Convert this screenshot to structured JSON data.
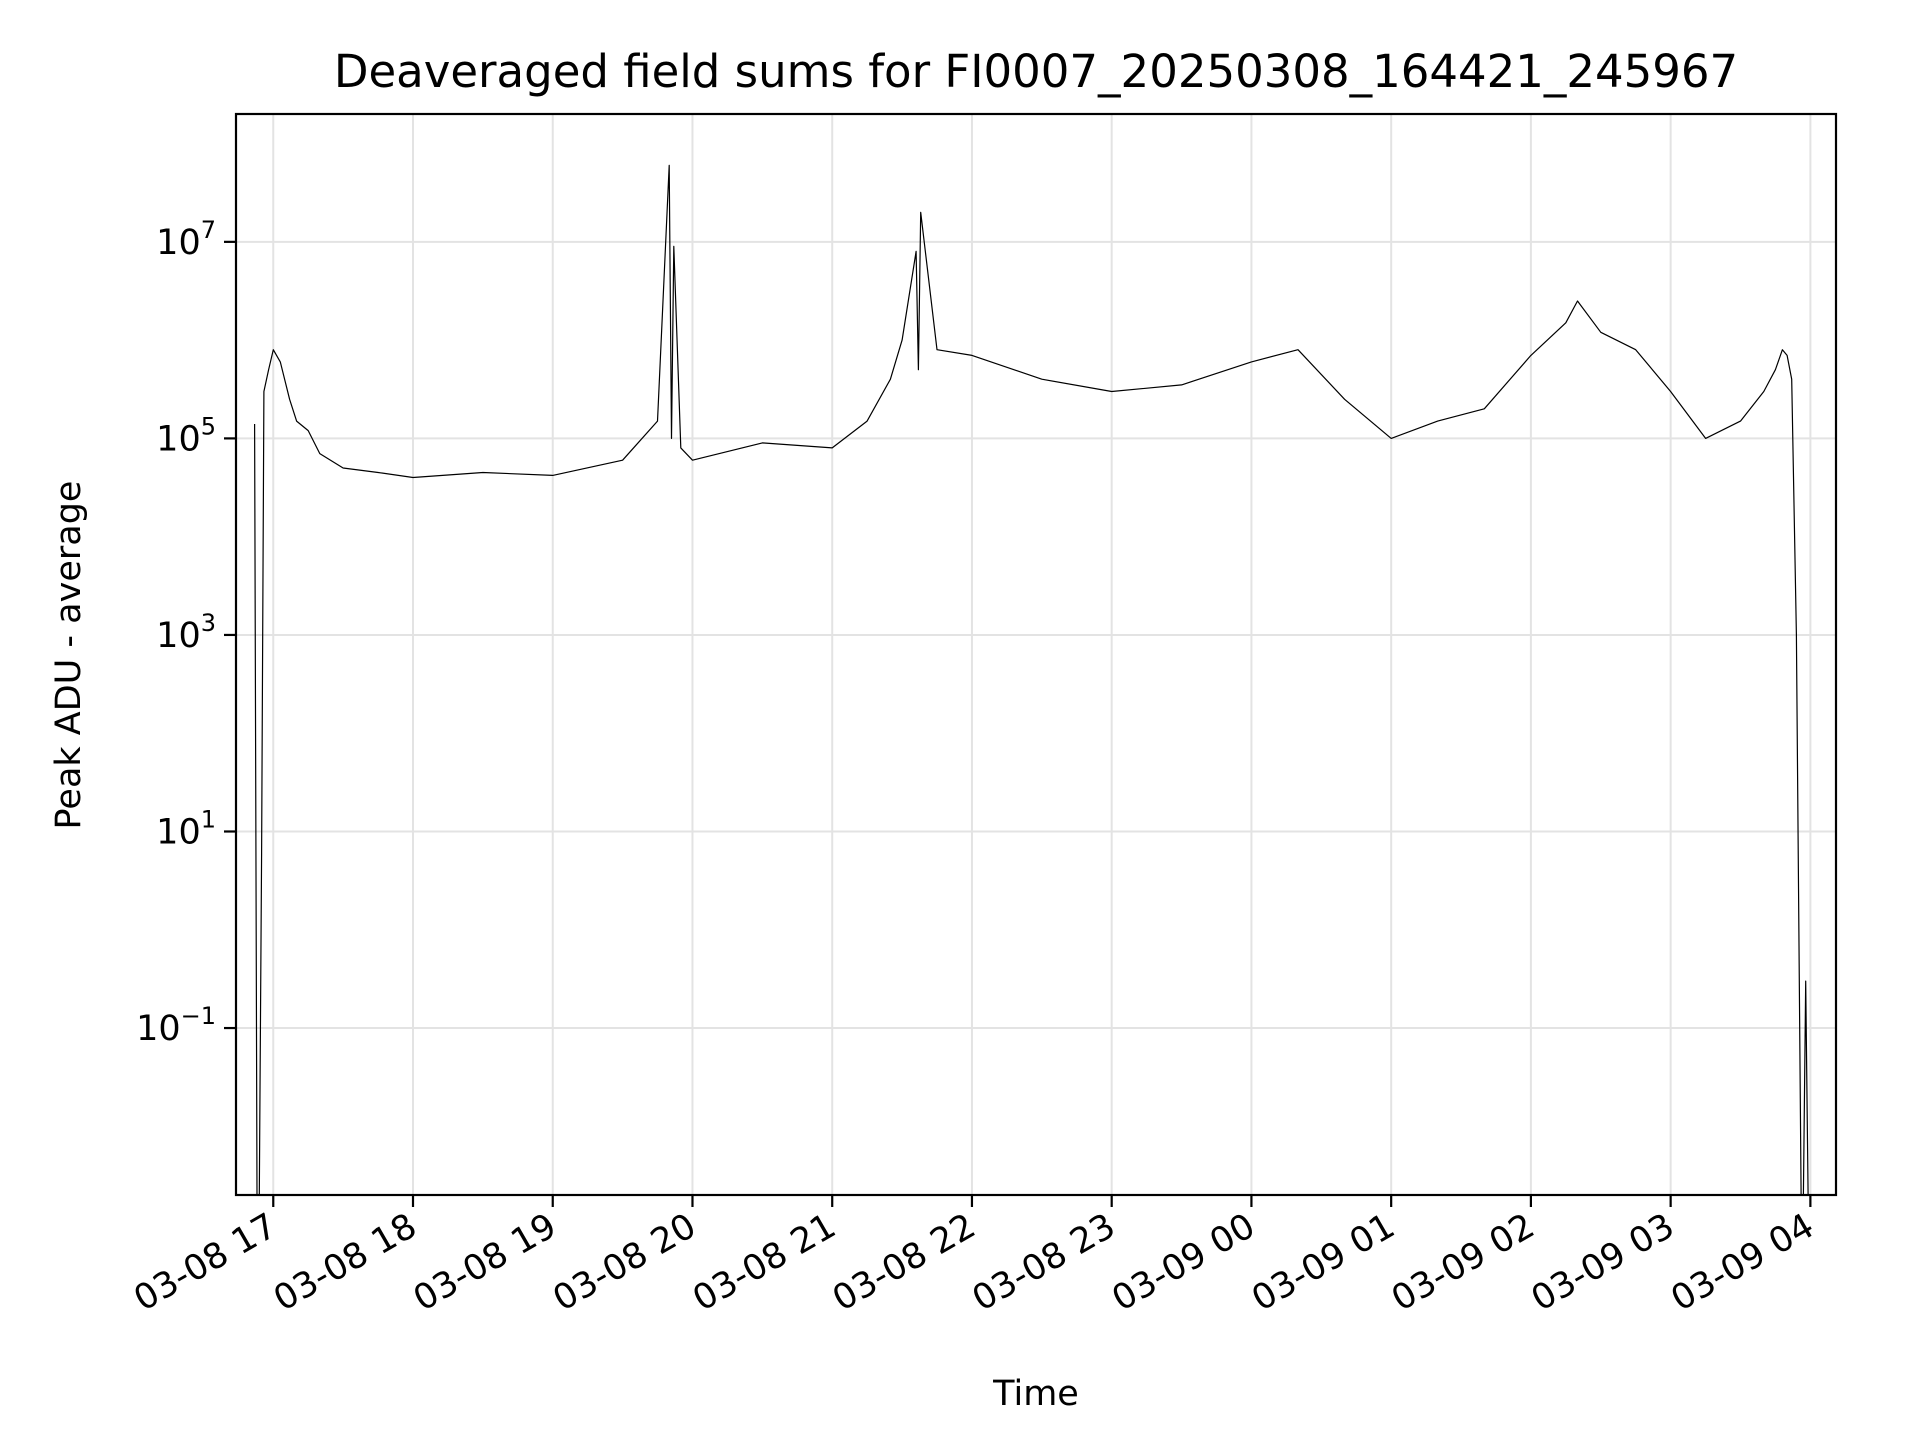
{
  "chart_data": {
    "type": "line",
    "title": "Deaveraged field sums for FI0007_20250308_164421_245967",
    "xlabel": "Time",
    "ylabel": "Peak ADU - average",
    "yscale": "log",
    "grid": true,
    "xlim": [
      "2025-03-08 16:44",
      "2025-03-09 04:11"
    ],
    "ylim": [
      0.002,
      200000000.0
    ],
    "x_ticks": [
      {
        "value": "2025-03-08 17:00",
        "label": "03-08 17"
      },
      {
        "value": "2025-03-08 18:00",
        "label": "03-08 18"
      },
      {
        "value": "2025-03-08 19:00",
        "label": "03-08 19"
      },
      {
        "value": "2025-03-08 20:00",
        "label": "03-08 20"
      },
      {
        "value": "2025-03-08 21:00",
        "label": "03-08 21"
      },
      {
        "value": "2025-03-08 22:00",
        "label": "03-08 22"
      },
      {
        "value": "2025-03-08 23:00",
        "label": "03-08 23"
      },
      {
        "value": "2025-03-09 00:00",
        "label": "03-09 00"
      },
      {
        "value": "2025-03-09 01:00",
        "label": "03-09 01"
      },
      {
        "value": "2025-03-09 02:00",
        "label": "03-09 02"
      },
      {
        "value": "2025-03-09 03:00",
        "label": "03-09 03"
      },
      {
        "value": "2025-03-09 04:00",
        "label": "03-09 04"
      }
    ],
    "y_ticks": [
      {
        "value": 0.1,
        "base": "10",
        "exp": "−1"
      },
      {
        "value": 10,
        "base": "10",
        "exp": "1"
      },
      {
        "value": 1000,
        "base": "10",
        "exp": "3"
      },
      {
        "value": 100000,
        "base": "10",
        "exp": "5"
      },
      {
        "value": 10000000,
        "base": "10",
        "exp": "7"
      }
    ],
    "series": [
      {
        "color": "#000000",
        "x": [
          "2025-03-08 16:52",
          "2025-03-08 16:53",
          "2025-03-08 16:54",
          "2025-03-08 16:55",
          "2025-03-08 16:56",
          "2025-03-08 16:58",
          "2025-03-08 17:00",
          "2025-03-08 17:03",
          "2025-03-08 17:07",
          "2025-03-08 17:10",
          "2025-03-08 17:15",
          "2025-03-08 17:20",
          "2025-03-08 17:30",
          "2025-03-08 17:45",
          "2025-03-08 18:00",
          "2025-03-08 18:30",
          "2025-03-08 19:00",
          "2025-03-08 19:30",
          "2025-03-08 19:45",
          "2025-03-08 19:50",
          "2025-03-08 19:51",
          "2025-03-08 19:52",
          "2025-03-08 19:55",
          "2025-03-08 20:00",
          "2025-03-08 20:30",
          "2025-03-08 21:00",
          "2025-03-08 21:15",
          "2025-03-08 21:25",
          "2025-03-08 21:30",
          "2025-03-08 21:36",
          "2025-03-08 21:37",
          "2025-03-08 21:38",
          "2025-03-08 21:45",
          "2025-03-08 22:00",
          "2025-03-08 22:30",
          "2025-03-08 23:00",
          "2025-03-08 23:30",
          "2025-03-09 00:00",
          "2025-03-09 00:20",
          "2025-03-09 00:40",
          "2025-03-09 01:00",
          "2025-03-09 01:20",
          "2025-03-09 01:40",
          "2025-03-09 02:00",
          "2025-03-09 02:15",
          "2025-03-09 02:20",
          "2025-03-09 02:30",
          "2025-03-09 02:45",
          "2025-03-09 03:00",
          "2025-03-09 03:15",
          "2025-03-09 03:30",
          "2025-03-09 03:40",
          "2025-03-09 03:45",
          "2025-03-09 03:48",
          "2025-03-09 03:50",
          "2025-03-09 03:52",
          "2025-03-09 03:54",
          "2025-03-09 03:56",
          "2025-03-09 03:57",
          "2025-03-09 03:58",
          "2025-03-09 03:59"
        ],
        "y": [
          140000,
          0.002,
          0.002,
          6,
          300000,
          500000,
          800000,
          600000,
          250000,
          150000,
          120000,
          70000,
          50000,
          45000,
          40000,
          45000,
          42000,
          60000,
          150000,
          60000000,
          100000,
          9000000,
          80000,
          60000,
          90000,
          80000,
          150000,
          400000,
          1000000,
          8000000,
          500000,
          20000000,
          800000,
          700000,
          400000,
          300000,
          350000,
          600000,
          800000,
          250000,
          100000,
          150000,
          200000,
          700000,
          1500000,
          2500000,
          1200000,
          800000,
          300000,
          100000,
          150000,
          300000,
          500000,
          800000,
          700000,
          400000,
          1000,
          0.002,
          0.002,
          0.3,
          0.002
        ]
      }
    ]
  }
}
